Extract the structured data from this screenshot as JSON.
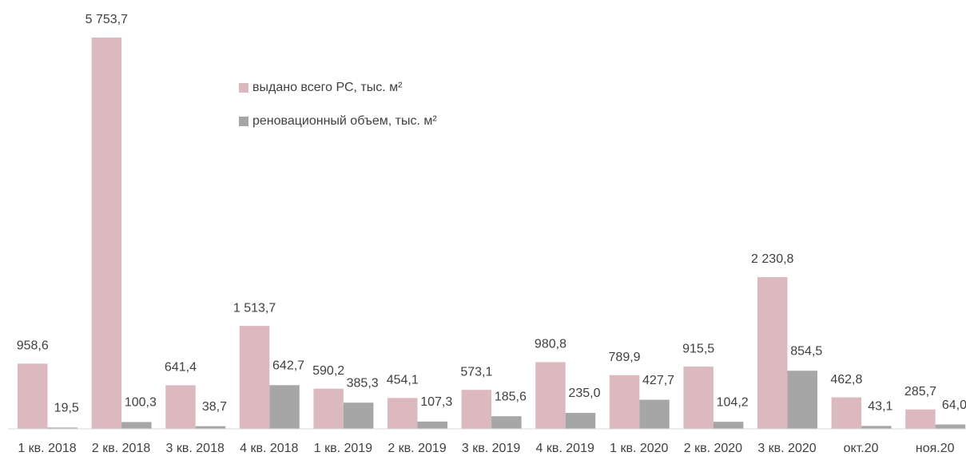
{
  "chart_data": {
    "type": "bar",
    "categories": [
      "1 кв. 2018",
      "2 кв. 2018",
      "3 кв. 2018",
      "4 кв. 2018",
      "1 кв. 2019",
      "2 кв. 2019",
      "3 кв. 2019",
      "4 кв. 2019",
      "1 кв. 2020",
      "2 кв. 2020",
      "3 кв. 2020",
      "окт.20",
      "ноя.20"
    ],
    "series": [
      {
        "name": "выдано всего РС, тыс. м²",
        "color": "#dcb9bf",
        "values": [
          958.6,
          5753.7,
          641.4,
          1513.7,
          590.2,
          454.1,
          573.1,
          980.8,
          789.9,
          915.5,
          2230.8,
          462.8,
          285.7
        ],
        "value_labels": [
          "958,6",
          "5 753,7",
          "641,4",
          "1 513,7",
          "590,2",
          "454,1",
          "573,1",
          "980,8",
          "789,9",
          "915,5",
          "2 230,8",
          "462,8",
          "285,7"
        ]
      },
      {
        "name": "реновационный объем, тыс. м²",
        "color": "#a6a6a6",
        "values": [
          19.5,
          100.3,
          38.7,
          642.7,
          385.3,
          107.3,
          185.6,
          235.0,
          427.7,
          104.2,
          854.5,
          43.1,
          64.0
        ],
        "value_labels": [
          "19,5",
          "100,3",
          "38,7",
          "642,7",
          "385,3",
          "107,3",
          "185,6",
          "235,0",
          "427,7",
          "104,2",
          "854,5",
          "43,1",
          "64,0"
        ]
      }
    ],
    "legend": "upper center"
  }
}
